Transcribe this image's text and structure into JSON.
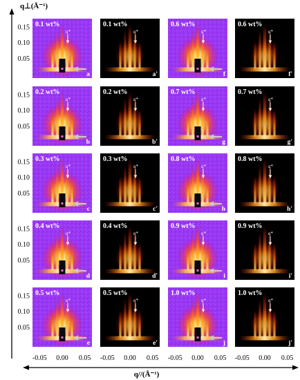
{
  "y_axis": {
    "label": "q⊥(Å⁻¹)",
    "ticks": [
      "0.15",
      "0.10",
      "0.05"
    ]
  },
  "x_axis": {
    "label": "q//(Å⁻¹)",
    "ticks": [
      "-0.05",
      "0.00",
      "0.05"
    ]
  },
  "peak_label": "q*",
  "columns": [
    {
      "kind": "exp",
      "panels": [
        {
          "conc": "0.1 wt%",
          "letter": "a"
        },
        {
          "conc": "0.2 wt%",
          "letter": "b"
        },
        {
          "conc": "0.3 wt%",
          "letter": "c"
        },
        {
          "conc": "0.4 wt%",
          "letter": "d"
        },
        {
          "conc": "0.5 wt%",
          "letter": "e"
        }
      ]
    },
    {
      "kind": "sim",
      "panels": [
        {
          "conc": "0.1 wt%",
          "letter": "a'"
        },
        {
          "conc": "0.2 wt%",
          "letter": "b'"
        },
        {
          "conc": "0.3 wt%",
          "letter": "c'"
        },
        {
          "conc": "0.4 wt%",
          "letter": "d'"
        },
        {
          "conc": "0.5 wt%",
          "letter": "e'"
        }
      ]
    },
    {
      "kind": "exp",
      "panels": [
        {
          "conc": "0.6 wt%",
          "letter": "f"
        },
        {
          "conc": "0.7 wt%",
          "letter": "g"
        },
        {
          "conc": "0.8 wt%",
          "letter": "h"
        },
        {
          "conc": "0.9 wt%",
          "letter": "i"
        },
        {
          "conc": "1.0 wt%",
          "letter": "j"
        }
      ]
    },
    {
      "kind": "sim",
      "panels": [
        {
          "conc": "0.6 wt%",
          "letter": "f'"
        },
        {
          "conc": "0.7 wt%",
          "letter": "g'"
        },
        {
          "conc": "0.8 wt%",
          "letter": "h'"
        },
        {
          "conc": "0.9 wt%",
          "letter": "i'"
        },
        {
          "conc": "1.0 wt%",
          "letter": "j'"
        }
      ]
    }
  ],
  "colors": {
    "exp_background": "#9a38f4",
    "sim_background": "#000000",
    "beamstop": "#0a0a14",
    "arrow": "#ffffff"
  }
}
